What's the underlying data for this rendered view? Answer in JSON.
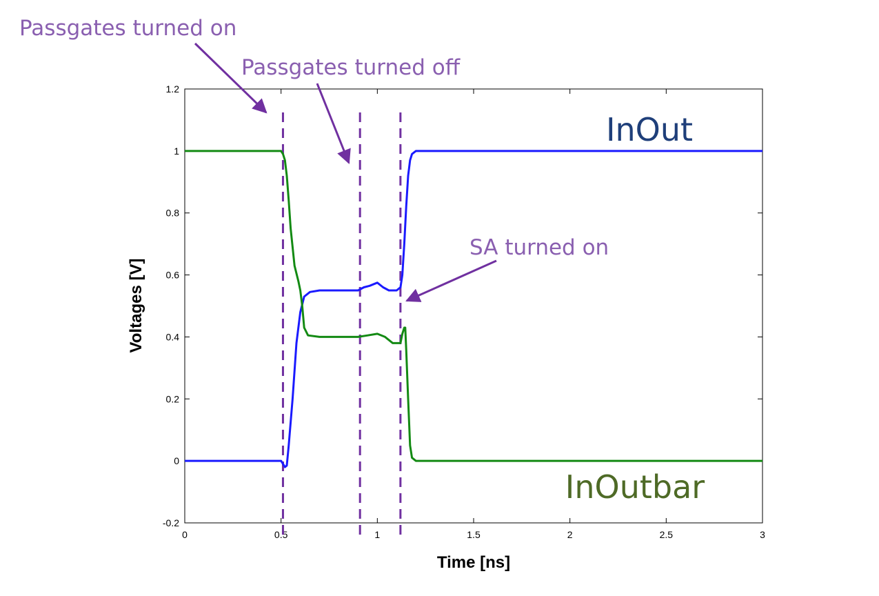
{
  "chart_data": {
    "type": "line",
    "title": "",
    "xlabel": "Time [ns]",
    "ylabel": "Voltages [V]",
    "xlim": [
      0,
      3
    ],
    "ylim": [
      -0.2,
      1.2
    ],
    "xticks": [
      0,
      0.5,
      1,
      1.5,
      2,
      2.5,
      3
    ],
    "xtick_labels": [
      "0",
      "0.5",
      "1",
      "1.5",
      "2",
      "2.5",
      "3"
    ],
    "yticks": [
      -0.2,
      0,
      0.2,
      0.4,
      0.6,
      0.8,
      1,
      1.2
    ],
    "ytick_labels": [
      "-0.2",
      "0",
      "0.2",
      "0.4",
      "0.6",
      "0.8",
      "1",
      "1.2"
    ],
    "grid": false,
    "series": [
      {
        "name": "InOut",
        "color": "#1a1aff",
        "x": [
          0,
          0.5,
          0.51,
          0.52,
          0.53,
          0.54,
          0.56,
          0.58,
          0.6,
          0.62,
          0.65,
          0.7,
          0.8,
          0.9,
          0.93,
          0.96,
          1.0,
          1.03,
          1.06,
          1.1,
          1.12,
          1.13,
          1.14,
          1.15,
          1.16,
          1.17,
          1.18,
          1.2,
          1.25,
          3
        ],
        "y": [
          0,
          0,
          -0.01,
          -0.02,
          -0.015,
          0.05,
          0.2,
          0.38,
          0.48,
          0.53,
          0.545,
          0.55,
          0.55,
          0.55,
          0.56,
          0.565,
          0.575,
          0.56,
          0.55,
          0.55,
          0.56,
          0.6,
          0.7,
          0.82,
          0.92,
          0.97,
          0.99,
          1.0,
          1.0,
          1.0
        ]
      },
      {
        "name": "InOutbar",
        "color": "#138a13",
        "x": [
          0,
          0.5,
          0.51,
          0.52,
          0.53,
          0.54,
          0.55,
          0.57,
          0.59,
          0.6,
          0.61,
          0.62,
          0.64,
          0.7,
          0.8,
          0.9,
          0.95,
          1.0,
          1.04,
          1.08,
          1.1,
          1.12,
          1.13,
          1.14,
          1.145,
          1.15,
          1.16,
          1.17,
          1.18,
          1.2,
          3
        ],
        "y": [
          1,
          1,
          0.99,
          0.97,
          0.92,
          0.84,
          0.75,
          0.63,
          0.58,
          0.55,
          0.5,
          0.43,
          0.405,
          0.4,
          0.4,
          0.4,
          0.405,
          0.41,
          0.4,
          0.38,
          0.38,
          0.38,
          0.41,
          0.43,
          0.43,
          0.36,
          0.2,
          0.05,
          0.01,
          0,
          0
        ]
      }
    ],
    "vlines": [
      0.51,
      0.91,
      1.12
    ],
    "series_labels": [
      {
        "text": "InOut",
        "color": "#1f3f7a",
        "x": 2.1,
        "y": 1.07
      },
      {
        "text": "InOutbar",
        "color": "#4e6a26",
        "x": 1.97,
        "y": -0.1
      }
    ],
    "annotations": [
      {
        "text": "Passgates turned on",
        "arrow_to": [
          0.43,
          1.12
        ]
      },
      {
        "text": "Passgates turned off",
        "arrow_to": [
          0.86,
          0.97
        ]
      },
      {
        "text": "SA turned on",
        "arrow_to": [
          1.15,
          0.51
        ]
      }
    ]
  }
}
